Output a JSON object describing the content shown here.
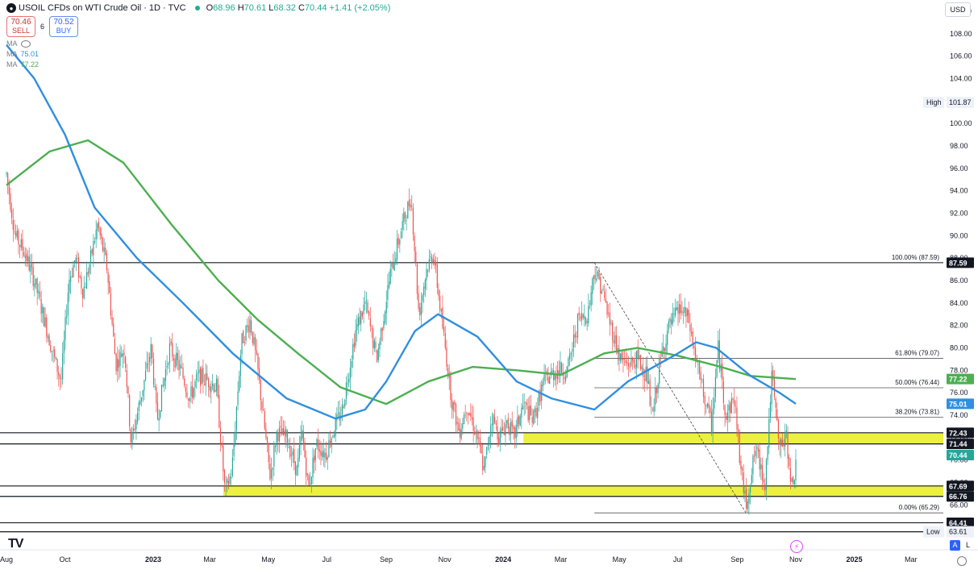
{
  "header": {
    "symbol": "USOIL",
    "description": "CFDs on WTI Crude Oil · 1D · TVC",
    "open_label": "O",
    "open": "68.96",
    "high_label": "H",
    "high": "70.61",
    "low_label": "L",
    "low": "68.32",
    "close_label": "C",
    "close": "70.44",
    "change": "+1.41 (+2.05%)"
  },
  "trade": {
    "sell_price": "70.46",
    "sell_label": "SELL",
    "spread": "6",
    "buy_price": "70.52",
    "buy_label": "BUY"
  },
  "indicators": [
    {
      "label": "MA",
      "value": ""
    },
    {
      "label": "MA",
      "value": "75.01",
      "color": "#2f8fe0"
    },
    {
      "label": "MA",
      "value": "77.22",
      "color": "#4caf50"
    }
  ],
  "currency": "USD",
  "logo_text": "TV",
  "mode_buttons": {
    "auto": "A",
    "log": "L"
  },
  "chart_data": {
    "type": "candlestick",
    "y_axis": {
      "min": 62,
      "max": 111,
      "ticks": [
        110,
        108,
        106,
        104,
        102,
        100,
        98,
        96,
        94,
        92,
        90,
        88,
        86,
        84,
        82,
        80,
        78,
        76,
        74,
        72,
        70,
        68,
        66
      ]
    },
    "x_axis": {
      "ticks": [
        "Aug",
        "Oct",
        "2023",
        "Mar",
        "May",
        "Jul",
        "Sep",
        "Nov",
        "2024",
        "Mar",
        "May",
        "Jul",
        "Sep",
        "Nov",
        "2025",
        "Mar"
      ]
    },
    "price_path": [
      [
        "2022-08-01",
        95.5
      ],
      [
        "2022-08-10",
        90
      ],
      [
        "2022-08-20",
        88.5
      ],
      [
        "2022-08-30",
        86
      ],
      [
        "2022-09-08",
        83
      ],
      [
        "2022-09-20",
        79
      ],
      [
        "2022-09-27",
        77
      ],
      [
        "2022-10-05",
        86
      ],
      [
        "2022-10-12",
        88
      ],
      [
        "2022-10-20",
        85
      ],
      [
        "2022-10-28",
        88
      ],
      [
        "2022-11-04",
        91
      ],
      [
        "2022-11-14",
        87
      ],
      [
        "2022-11-23",
        78.5
      ],
      [
        "2022-12-02",
        80
      ],
      [
        "2022-12-09",
        71.5
      ],
      [
        "2022-12-20",
        76
      ],
      [
        "2022-12-30",
        80
      ],
      [
        "2023-01-05",
        73.5
      ],
      [
        "2023-01-18",
        80
      ],
      [
        "2023-01-30",
        78
      ],
      [
        "2023-02-08",
        75.5
      ],
      [
        "2023-02-17",
        77.5
      ],
      [
        "2023-03-01",
        77
      ],
      [
        "2023-03-08",
        76.5
      ],
      [
        "2023-03-17",
        67
      ],
      [
        "2023-03-24",
        69
      ],
      [
        "2023-04-03",
        80.5
      ],
      [
        "2023-04-12",
        82.5
      ],
      [
        "2023-04-20",
        78
      ],
      [
        "2023-05-03",
        68.5
      ],
      [
        "2023-05-10",
        72.5
      ],
      [
        "2023-05-20",
        72
      ],
      [
        "2023-05-31",
        69
      ],
      [
        "2023-06-05",
        72.5
      ],
      [
        "2023-06-12",
        67.5
      ],
      [
        "2023-06-20",
        71.5
      ],
      [
        "2023-06-30",
        70.5
      ],
      [
        "2023-07-05",
        72
      ],
      [
        "2023-07-17",
        74.5
      ],
      [
        "2023-07-31",
        81.5
      ],
      [
        "2023-08-10",
        84
      ],
      [
        "2023-08-22",
        79
      ],
      [
        "2023-09-05",
        86.5
      ],
      [
        "2023-09-18",
        91
      ],
      [
        "2023-09-27",
        93.5
      ],
      [
        "2023-10-05",
        83
      ],
      [
        "2023-10-13",
        87
      ],
      [
        "2023-10-20",
        88.5
      ],
      [
        "2023-10-31",
        81
      ],
      [
        "2023-11-08",
        75.5
      ],
      [
        "2023-11-16",
        72.5
      ],
      [
        "2023-11-24",
        75
      ],
      [
        "2023-12-05",
        72
      ],
      [
        "2023-12-12",
        69
      ],
      [
        "2023-12-20",
        74
      ],
      [
        "2023-12-28",
        72
      ],
      [
        "2024-01-05",
        73.5
      ],
      [
        "2024-01-12",
        72
      ],
      [
        "2024-01-22",
        75
      ],
      [
        "2024-02-01",
        73.5
      ],
      [
        "2024-02-12",
        77
      ],
      [
        "2024-02-26",
        78
      ],
      [
        "2024-03-08",
        78
      ],
      [
        "2024-03-19",
        82.5
      ],
      [
        "2024-03-29",
        83
      ],
      [
        "2024-04-05",
        87
      ],
      [
        "2024-04-12",
        85.5
      ],
      [
        "2024-04-22",
        82
      ],
      [
        "2024-05-02",
        79
      ],
      [
        "2024-05-10",
        78.5
      ],
      [
        "2024-05-20",
        79
      ],
      [
        "2024-05-30",
        77.5
      ],
      [
        "2024-06-04",
        73.5
      ],
      [
        "2024-06-12",
        78.5
      ],
      [
        "2024-06-20",
        81.5
      ],
      [
        "2024-07-03",
        83.5
      ],
      [
        "2024-07-12",
        82.5
      ],
      [
        "2024-07-22",
        78
      ],
      [
        "2024-08-05",
        73
      ],
      [
        "2024-08-12",
        80
      ],
      [
        "2024-08-20",
        74
      ],
      [
        "2024-08-29",
        75.5
      ],
      [
        "2024-09-05",
        69
      ],
      [
        "2024-09-10",
        66
      ],
      [
        "2024-09-20",
        71
      ],
      [
        "2024-09-30",
        68
      ],
      [
        "2024-10-07",
        77.5
      ],
      [
        "2024-10-15",
        71
      ],
      [
        "2024-10-22",
        72
      ],
      [
        "2024-10-29",
        67
      ],
      [
        "2024-11-01",
        70.44
      ]
    ],
    "ma_slow": {
      "name": "MA",
      "color": "#4caf50",
      "last": 77.22,
      "points": [
        [
          "2022-08-01",
          94.5
        ],
        [
          "2022-09-15",
          97.5
        ],
        [
          "2022-10-25",
          98.5
        ],
        [
          "2022-12-01",
          96.5
        ],
        [
          "2023-01-20",
          91
        ],
        [
          "2023-03-10",
          86
        ],
        [
          "2023-04-20",
          82.5
        ],
        [
          "2023-06-01",
          79.5
        ],
        [
          "2023-07-15",
          76.5
        ],
        [
          "2023-09-01",
          75
        ],
        [
          "2023-10-15",
          77
        ],
        [
          "2023-11-30",
          78.3
        ],
        [
          "2024-01-15",
          78
        ],
        [
          "2024-03-01",
          77.6
        ],
        [
          "2024-04-15",
          79.5
        ],
        [
          "2024-05-20",
          80
        ],
        [
          "2024-07-01",
          79.3
        ],
        [
          "2024-08-15",
          78.3
        ],
        [
          "2024-09-15",
          77.5
        ],
        [
          "2024-11-01",
          77.22
        ]
      ]
    },
    "ma_fast": {
      "name": "MA",
      "color": "#2f8fe0",
      "last": 75.01,
      "points": [
        [
          "2022-08-01",
          107
        ],
        [
          "2022-08-30",
          104
        ],
        [
          "2022-10-01",
          99
        ],
        [
          "2022-11-01",
          92.5
        ],
        [
          "2022-12-15",
          88
        ],
        [
          "2023-02-01",
          84
        ],
        [
          "2023-03-25",
          79.5
        ],
        [
          "2023-05-20",
          75.5
        ],
        [
          "2023-07-10",
          73.7
        ],
        [
          "2023-08-10",
          74.5
        ],
        [
          "2023-09-01",
          77
        ],
        [
          "2023-10-01",
          81.5
        ],
        [
          "2023-10-25",
          83
        ],
        [
          "2023-12-05",
          81
        ],
        [
          "2024-01-15",
          77
        ],
        [
          "2024-02-20",
          75.5
        ],
        [
          "2024-04-05",
          74.5
        ],
        [
          "2024-05-10",
          77
        ],
        [
          "2024-06-10",
          78.5
        ],
        [
          "2024-07-01",
          79.5
        ],
        [
          "2024-07-20",
          80.5
        ],
        [
          "2024-08-10",
          80
        ],
        [
          "2024-09-15",
          77.5
        ],
        [
          "2024-10-15",
          76
        ],
        [
          "2024-11-01",
          75.01
        ]
      ]
    },
    "horizontal_lines": [
      87.59,
      72.43,
      71.44,
      67.69,
      66.76,
      64.41,
      63.61
    ],
    "support_zones": [
      {
        "start": "2023-03-15",
        "top": 67.69,
        "bottom": 66.76,
        "color": "#eaf02a"
      },
      {
        "start": "2024-01-22",
        "top": 72.43,
        "bottom": 71.44,
        "color": "#eaf02a"
      }
    ],
    "fibonacci": {
      "from": [
        "2024-04-05",
        87.59
      ],
      "to": [
        "2024-09-10",
        65.29
      ],
      "levels": [
        {
          "label": "100.00% (87.59)",
          "value": 87.59
        },
        {
          "label": "61.80% (79.07)",
          "value": 79.07
        },
        {
          "label": "50.00% (76.44)",
          "value": 76.44
        },
        {
          "label": "38.20% (73.81)",
          "value": 73.81
        },
        {
          "label": "0.00% (65.29)",
          "value": 65.29
        }
      ]
    },
    "price_labels": [
      {
        "text": "87.59",
        "value": 87.59,
        "style": "dark"
      },
      {
        "text": "77.22",
        "value": 77.22,
        "style": "green"
      },
      {
        "text": "75.01",
        "value": 75.01,
        "style": "blue"
      },
      {
        "text": "72.43",
        "value": 72.43,
        "style": "dark"
      },
      {
        "text": "71.44",
        "value": 71.44,
        "style": "dark"
      },
      {
        "text": "70.44",
        "value": 70.44,
        "style": "greenlast"
      },
      {
        "text": "67.69",
        "value": 67.69,
        "style": "dark"
      },
      {
        "text": "66.76",
        "value": 66.76,
        "style": "dark"
      },
      {
        "text": "64.41",
        "value": 64.41,
        "style": "dark"
      },
      {
        "text": "63.61",
        "value": 63.61,
        "style": "dark"
      }
    ],
    "extremes": [
      {
        "label": "High",
        "value": 101.87,
        "text": "101.87"
      },
      {
        "label": "Low",
        "value": 63.61,
        "text": "63.61"
      }
    ]
  }
}
